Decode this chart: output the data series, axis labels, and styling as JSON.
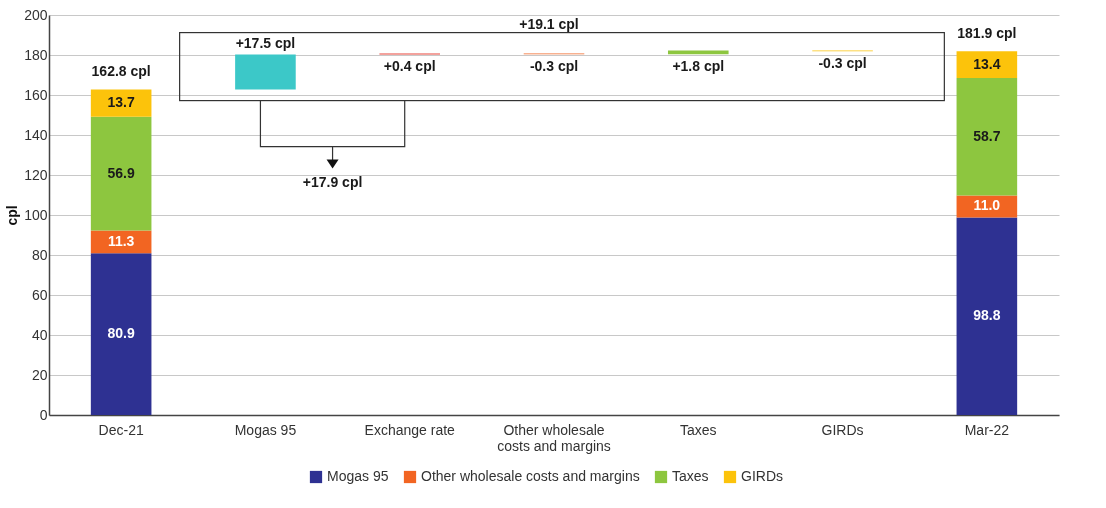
{
  "chart_data": {
    "type": "bar",
    "stacked": true,
    "categories": [
      "Dec-21",
      "Mogas 95",
      "Exchange rate",
      "Other wholesale costs and margins",
      "Taxes",
      "GIRDs",
      "Mar-22"
    ],
    "series": [
      {
        "name": "Mogas 95",
        "color": "#2e3192",
        "values": [
          80.9,
          null,
          null,
          null,
          null,
          null,
          98.8
        ]
      },
      {
        "name": "Other wholesale costs and margins",
        "color": "#f26522",
        "values": [
          11.3,
          null,
          null,
          null,
          null,
          null,
          11.0
        ],
        "value_labels": [
          "11.3",
          null,
          null,
          null,
          null,
          null,
          "11.0"
        ]
      },
      {
        "name": "Taxes",
        "color": "#8dc63f",
        "values": [
          56.9,
          null,
          null,
          null,
          null,
          null,
          58.7
        ]
      },
      {
        "name": "GIRDs",
        "color": "#fcc30b",
        "values": [
          13.7,
          null,
          null,
          null,
          null,
          null,
          13.4
        ]
      },
      {
        "type": "bar",
        "base": [
          null,
          162.8,
          180.3,
          180.7,
          180.4,
          182.2,
          null
        ],
        "values": [
          null,
          17.5,
          0.4,
          -0.3,
          1.8,
          -0.3,
          null
        ],
        "colors": [
          null,
          "#3cc8c8",
          "#e8463c",
          "#f26522",
          "#8dc63f",
          "#fcc30b",
          null
        ],
        "value_labels": [
          null,
          "+17.5 cpl",
          "+0.4 cpl",
          "-0.3 cpl",
          "+1.8 cpl",
          "-0.3 cpl",
          null
        ]
      }
    ],
    "data_labels": true,
    "totals": [
      "162.8 cpl",
      null,
      null,
      null,
      null,
      null,
      "181.9 cpl"
    ],
    "ylabel": "cpl",
    "ylim": [
      0,
      200
    ],
    "yticks": [
      0,
      20,
      40,
      60,
      80,
      100,
      120,
      140,
      160,
      180,
      200
    ],
    "grid": "y",
    "legend": "bottom",
    "annotations": [
      "+19.1 cpl",
      "+17.9 cpl"
    ]
  }
}
